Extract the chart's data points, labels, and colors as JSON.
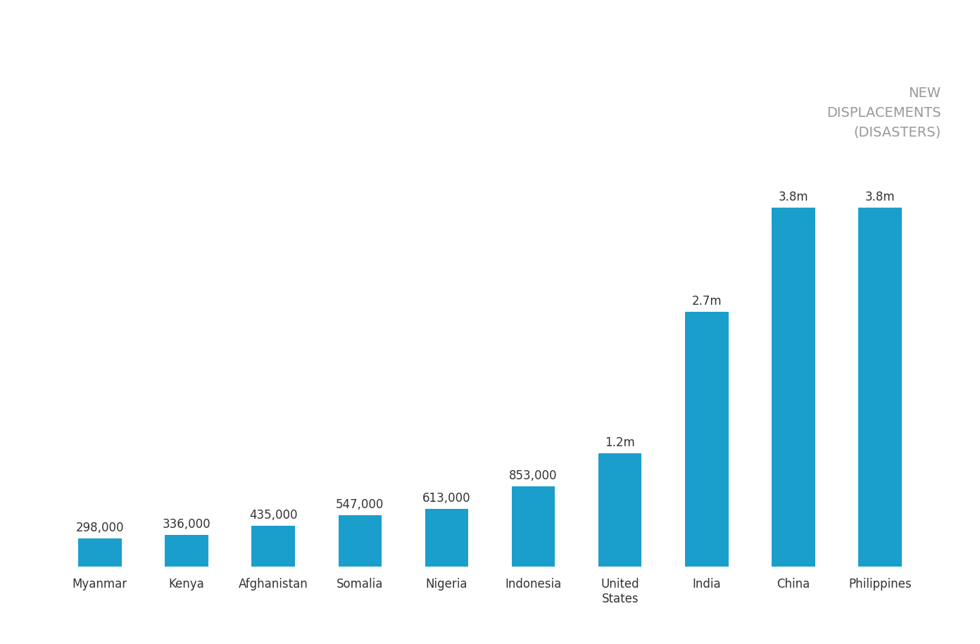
{
  "categories": [
    "Myanmar",
    "Kenya",
    "Afghanistan",
    "Somalia",
    "Nigeria",
    "Indonesia",
    "United\nStates",
    "India",
    "China",
    "Philippines"
  ],
  "values": [
    298000,
    336000,
    435000,
    547000,
    613000,
    853000,
    1200000,
    2700000,
    3800000,
    3800000
  ],
  "bar_labels": [
    "298,000",
    "336,000",
    "435,000",
    "547,000",
    "613,000",
    "853,000",
    "1.2m",
    "2.7m",
    "3.8m",
    "3.8m"
  ],
  "bar_color": "#1A9FCC",
  "background_color": "#ffffff",
  "annotation_color": "#333333",
  "legend_text": "NEW\nDISPLACEMENTS\n(DISASTERS)",
  "legend_color": "#999999",
  "ylim": [
    0,
    4500000
  ],
  "bar_width": 0.5,
  "label_fontsize": 12,
  "tick_fontsize": 12,
  "legend_fontsize": 14
}
